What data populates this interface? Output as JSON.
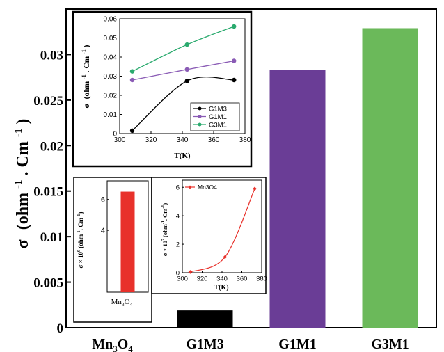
{
  "chart_data": [
    {
      "type": "bar",
      "categories": [
        "Mn3O4",
        "G1M3",
        "G1M1",
        "G3M1"
      ],
      "category_labels": [
        {
          "main": "Mn",
          "sub1": "3",
          "mid": "O",
          "sub2": "4"
        },
        {
          "main": "G1M3"
        },
        {
          "main": "G1M1"
        },
        {
          "main": "G3M1"
        }
      ],
      "values": [
        6.5e-09,
        0.0019,
        0.0283,
        0.0329
      ],
      "colors": [
        "#e8312b",
        "#000000",
        "#6a3d96",
        "#6bb95a"
      ],
      "ylim": [
        0,
        0.035
      ],
      "yticks": [
        0,
        0.005,
        0.01,
        0.015,
        0.02,
        0.025,
        0.03
      ],
      "ytick_labels": [
        "0",
        "0.005",
        "0.01",
        "0.015",
        "0.02",
        "0.025",
        "0.03"
      ],
      "ylabel": {
        "sigma": "σ",
        "lead": "(ohm",
        "sup1": "-1",
        "mid": ". Cm",
        "sup2": "-1",
        "tail": ")"
      }
    },
    {
      "type": "line",
      "x": [
        308,
        343,
        373
      ],
      "series": [
        {
          "name": "G1M3",
          "values": [
            0.0015,
            0.0275,
            0.028
          ],
          "color": "#000000"
        },
        {
          "name": "G1M1",
          "values": [
            0.028,
            0.0335,
            0.038
          ],
          "color": "#8a5bb5"
        },
        {
          "name": "G3M1",
          "values": [
            0.0325,
            0.0465,
            0.056
          ],
          "color": "#2aaa6e"
        }
      ],
      "xlim": [
        300,
        380
      ],
      "ylim": [
        0,
        0.06
      ],
      "xticks": [
        "300",
        "320",
        "340",
        "360",
        "380"
      ],
      "yticks": [
        "0",
        "0.01",
        "0.02",
        "0.03",
        "0.04",
        "0.05",
        "0.06"
      ],
      "xlabel": "T(K)",
      "ylabel": {
        "sigma": "σ",
        "lead": "(ohm",
        "sup1": "-1",
        "mid": ". Cm",
        "sup2": "-1",
        "tail": ")"
      },
      "legend_position": "bottom-right"
    },
    {
      "type": "bar",
      "categories": [
        "Mn3O4"
      ],
      "category_label": {
        "main": "Mn",
        "sub1": "3",
        "mid": "O",
        "sub2": "4"
      },
      "values": [
        6.5
      ],
      "color": "#e8312b",
      "ylim": [
        0,
        7.2
      ],
      "yticks": [
        "4",
        "6"
      ],
      "ylabel": {
        "lead": "σ × 10",
        "sup0": "9",
        "mid": "(ohm",
        "sup1": "-1",
        "mid2": ". Cm",
        "sup2": "-1",
        "tail": ")"
      }
    },
    {
      "type": "line",
      "x": [
        308,
        343,
        373
      ],
      "series": [
        {
          "name": "Mn3O4",
          "values": [
            0.05,
            1.1,
            5.9
          ],
          "color": "#e8312b"
        }
      ],
      "xlim": [
        300,
        380
      ],
      "ylim": [
        0,
        6.5
      ],
      "xticks": [
        "300",
        "320",
        "340",
        "360",
        "380"
      ],
      "yticks": [
        "0",
        "2",
        "4",
        "6"
      ],
      "xlabel": "T(K)",
      "ylabel": {
        "lead": "σ × 10",
        "sup0": "7",
        "mid": "(ohm",
        "sup1": "-1",
        "mid2": ". Cm",
        "sup2": "-1",
        "tail": ")"
      },
      "legend_position": "top-left"
    }
  ]
}
